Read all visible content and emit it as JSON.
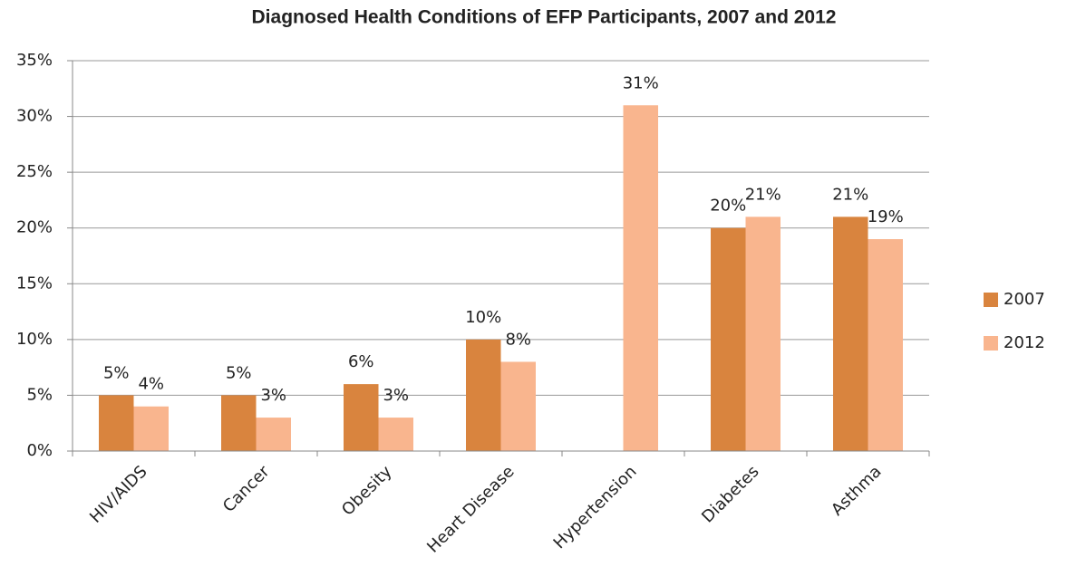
{
  "chart_data": {
    "type": "bar",
    "title": "Diagnosed Health Conditions of EFP Participants, 2007 and 2012",
    "categories": [
      "HIV/AIDS",
      "Cancer",
      "Obesity",
      "Heart Disease",
      "Hypertension",
      "Diabetes",
      "Asthma"
    ],
    "series": [
      {
        "name": "2007",
        "color": "#d9843e",
        "values": [
          5,
          5,
          6,
          10,
          null,
          20,
          21
        ],
        "value_labels": [
          "5%",
          "5%",
          "6%",
          "10%",
          null,
          "20%",
          "21%"
        ]
      },
      {
        "name": "2012",
        "color": "#f9b58e",
        "values": [
          4,
          3,
          3,
          8,
          31,
          21,
          19
        ],
        "value_labels": [
          "4%",
          "3%",
          "3%",
          "8%",
          "31%",
          "21%",
          "19%"
        ]
      }
    ],
    "ylim": [
      0,
      35
    ],
    "yticks": [
      {
        "value": 0,
        "label": "0%"
      },
      {
        "value": 5,
        "label": "5%"
      },
      {
        "value": 10,
        "label": "10%"
      },
      {
        "value": 15,
        "label": "15%"
      },
      {
        "value": 20,
        "label": "20%"
      },
      {
        "value": 25,
        "label": "25%"
      },
      {
        "value": 30,
        "label": "30%"
      },
      {
        "value": 35,
        "label": "35%"
      }
    ],
    "grid": true,
    "legend": "right"
  }
}
